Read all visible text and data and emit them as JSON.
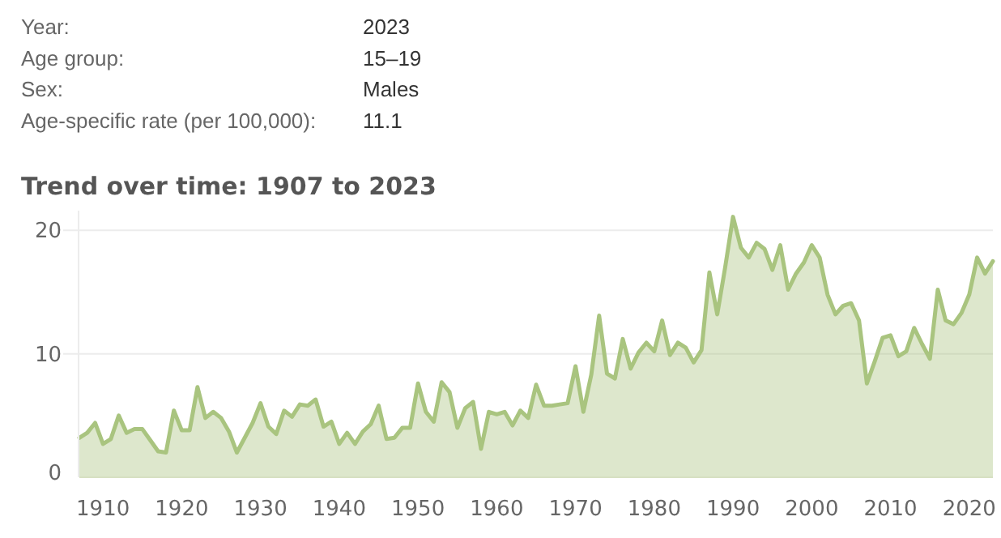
{
  "chart_data": {
    "type": "area",
    "title": "Trend over time: 1907 to 2023",
    "annotations": [
      "Year:",
      "2023",
      "Age group:",
      "15–19",
      "Sex:",
      "Males",
      "Age-specific rate (per 100,000):",
      "11.1"
    ],
    "x": [
      1907,
      1908,
      1909,
      1910,
      1911,
      1912,
      1913,
      1914,
      1915,
      1916,
      1917,
      1918,
      1919,
      1920,
      1921,
      1922,
      1923,
      1924,
      1925,
      1926,
      1927,
      1928,
      1929,
      1930,
      1931,
      1932,
      1933,
      1934,
      1935,
      1936,
      1937,
      1938,
      1939,
      1940,
      1941,
      1942,
      1943,
      1944,
      1945,
      1946,
      1947,
      1948,
      1949,
      1950,
      1951,
      1952,
      1953,
      1954,
      1955,
      1956,
      1957,
      1958,
      1959,
      1960,
      1961,
      1962,
      1963,
      1964,
      1965,
      1966,
      1967,
      1968,
      1969,
      1970,
      1971,
      1972,
      1973,
      1974,
      1975,
      1976,
      1977,
      1978,
      1979,
      1980,
      1981,
      1982,
      1983,
      1984,
      1985,
      1986,
      1987,
      1988,
      1989,
      1990,
      1991,
      1992,
      1993,
      1994,
      1995,
      1996,
      1997,
      1998,
      1999,
      2000,
      2001,
      2002,
      2003,
      2004,
      2005,
      2006,
      2007,
      2008,
      2009,
      2010,
      2011,
      2012,
      2013,
      2014,
      2015,
      2016,
      2017,
      2018,
      2019,
      2020,
      2021,
      2022,
      2023
    ],
    "series": [
      {
        "color": "#a9c47f",
        "values": [
          3.2,
          3.6,
          4.4,
          2.7,
          3.1,
          5.0,
          3.6,
          3.9,
          3.9,
          3.0,
          2.1,
          2.0,
          5.4,
          3.8,
          3.8,
          7.3,
          4.8,
          5.3,
          4.8,
          3.7,
          2.0,
          3.2,
          4.4,
          6.0,
          4.1,
          3.5,
          5.4,
          4.9,
          5.9,
          5.8,
          6.3,
          4.1,
          4.5,
          2.7,
          3.6,
          2.7,
          3.7,
          4.3,
          5.8,
          3.1,
          3.2,
          4.0,
          4.0,
          7.6,
          5.3,
          4.5,
          7.7,
          6.9,
          4.0,
          5.6,
          6.1,
          2.3,
          5.3,
          5.1,
          5.3,
          4.2,
          5.4,
          4.8,
          7.5,
          5.8,
          5.8,
          5.9,
          6.0,
          9.0,
          5.3,
          8.3,
          13.1,
          8.4,
          8.0,
          11.2,
          8.8,
          10.1,
          10.9,
          10.2,
          12.7,
          9.9,
          10.9,
          10.5,
          9.3,
          10.3,
          16.6,
          13.2,
          17.0,
          21.1,
          18.6,
          17.8,
          19.0,
          18.5,
          16.8,
          18.8,
          15.2,
          16.5,
          17.4,
          18.8,
          17.8,
          14.8,
          13.2,
          13.9,
          14.1,
          12.7,
          7.6,
          9.4,
          11.3,
          11.5,
          9.8,
          10.2,
          12.1,
          10.8,
          9.6,
          15.2,
          12.7,
          12.4,
          13.3,
          14.8,
          17.8,
          16.5,
          17.5
        ]
      }
    ],
    "xlim": [
      1907,
      2023
    ],
    "xticks": [
      1910,
      1920,
      1930,
      1940,
      1950,
      1960,
      1970,
      1980,
      1990,
      2000,
      2010,
      2020
    ],
    "ylim": [
      0,
      21.6
    ],
    "yticks": [
      0,
      10,
      20
    ],
    "grid": "y"
  }
}
